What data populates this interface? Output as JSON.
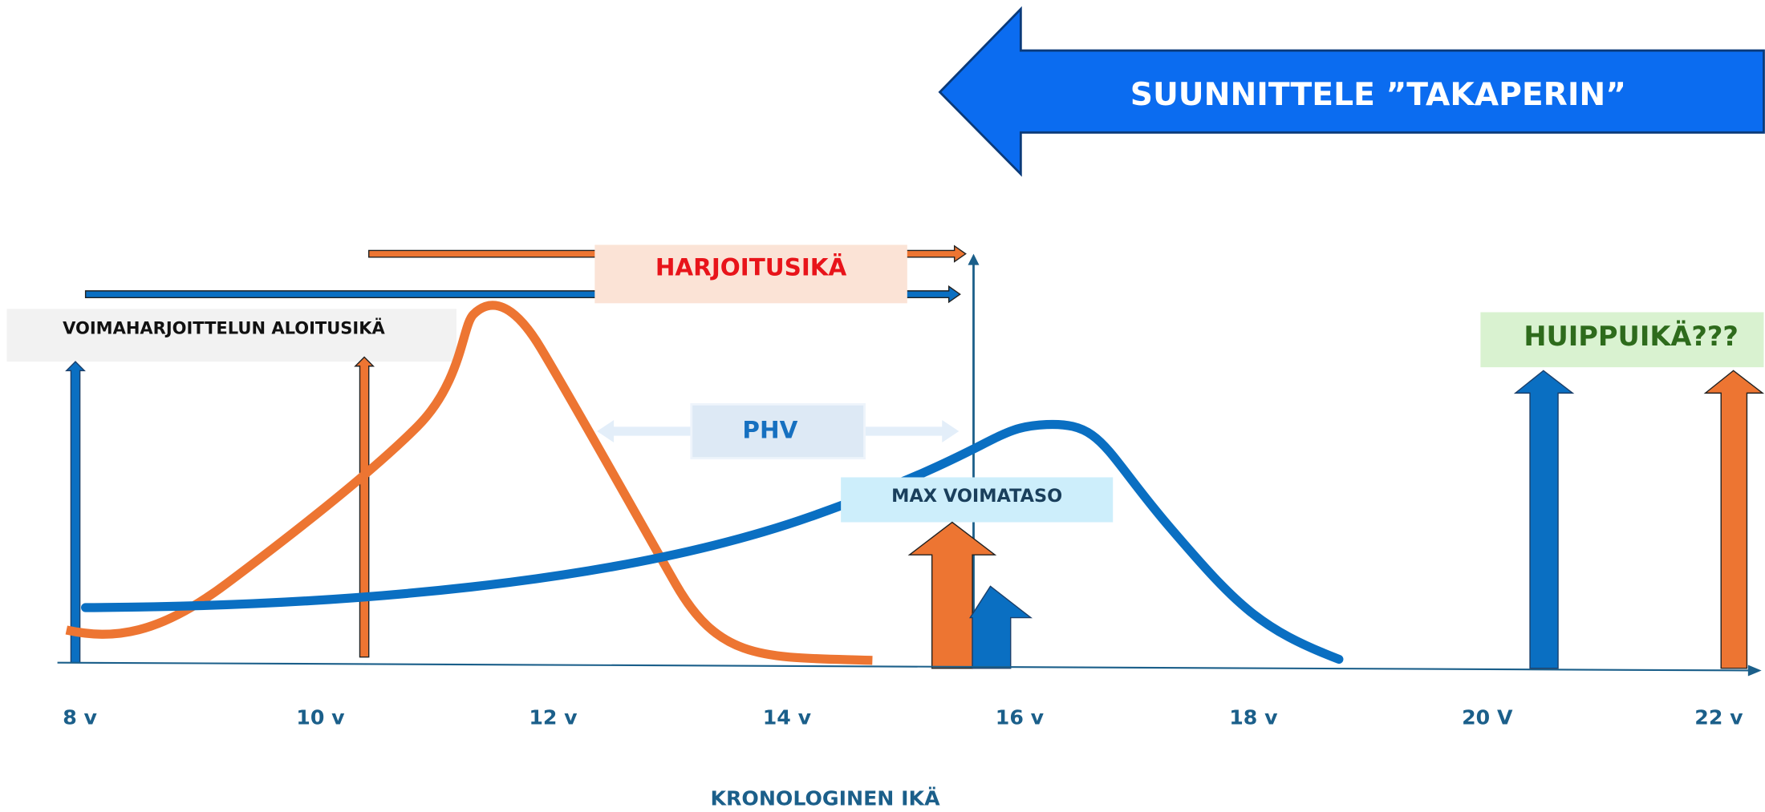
{
  "banner": "SUUNNITTELE ”TAKAPERIN”",
  "labels": {
    "training_age": "HARJOITUSIKÄ",
    "start_age": "VOIMAHARJOITTELUN ALOITUSIKÄ",
    "peak_age": "HUIPPUIKÄ???",
    "phv": "PHV",
    "max_strength": "MAX VOIMATASO"
  },
  "axis": {
    "ticks": [
      "8 v",
      "10 v",
      "12 v",
      "14 v",
      "16 v",
      "18 v",
      "20 V",
      "22 v"
    ],
    "title": "KRONOLOGINEN IKÄ"
  }
}
